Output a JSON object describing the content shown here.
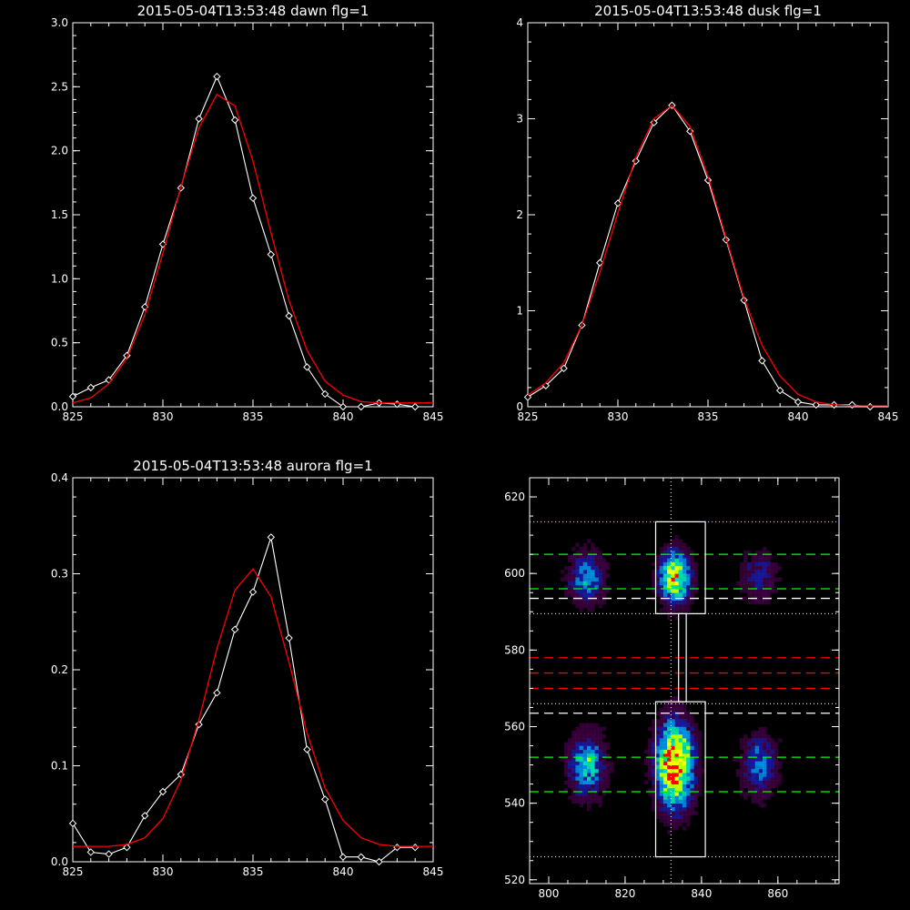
{
  "chart_data": [
    {
      "id": "dawn",
      "type": "line",
      "title": "2015-05-04T13:53:48 dawn flg=1",
      "xlim": [
        825,
        845
      ],
      "ylim": [
        0,
        3.0
      ],
      "xticks": [
        825,
        830,
        835,
        840,
        845
      ],
      "xtick_labels": [
        "825",
        "830",
        "835",
        "840",
        "845"
      ],
      "yticks": [
        0,
        0.5,
        1.0,
        1.5,
        2.0,
        2.5,
        3.0
      ],
      "ytick_labels": [
        "0.0",
        "0.5",
        "1.0",
        "1.5",
        "2.0",
        "2.5",
        "3.0"
      ],
      "series": [
        {
          "style": "data",
          "color": "#ffffff",
          "marker": "diamond",
          "x": [
            825,
            826,
            827,
            828,
            829,
            830,
            831,
            832,
            833,
            834,
            835,
            836,
            837,
            838,
            839,
            840,
            841,
            842,
            843,
            844
          ],
          "y": [
            0.08,
            0.15,
            0.21,
            0.4,
            0.78,
            1.27,
            1.71,
            2.25,
            2.58,
            2.24,
            1.63,
            1.19,
            0.71,
            0.31,
            0.1,
            0.0,
            0.0,
            0.03,
            0.02,
            0.0
          ]
        },
        {
          "style": "fit",
          "color": "#ff0000",
          "x": [
            825,
            826,
            827,
            828,
            829,
            830,
            831,
            832,
            833,
            834,
            835,
            836,
            837,
            838,
            839,
            840,
            841,
            842,
            843,
            844,
            845
          ],
          "y": [
            0.03,
            0.07,
            0.18,
            0.38,
            0.72,
            1.2,
            1.72,
            2.18,
            2.44,
            2.35,
            1.92,
            1.36,
            0.83,
            0.44,
            0.2,
            0.09,
            0.04,
            0.03,
            0.03,
            0.03,
            0.03
          ]
        }
      ]
    },
    {
      "id": "dusk",
      "type": "line",
      "title": "2015-05-04T13:53:48 dusk flg=1",
      "xlim": [
        825,
        845
      ],
      "ylim": [
        0,
        4
      ],
      "xticks": [
        825,
        830,
        835,
        840,
        845
      ],
      "xtick_labels": [
        "825",
        "830",
        "835",
        "840",
        "845"
      ],
      "yticks": [
        0,
        1,
        2,
        3,
        4
      ],
      "ytick_labels": [
        "0",
        "1",
        "2",
        "3",
        "4"
      ],
      "series": [
        {
          "style": "data",
          "color": "#ffffff",
          "marker": "diamond",
          "x": [
            825,
            826,
            827,
            828,
            829,
            830,
            831,
            832,
            833,
            834,
            835,
            836,
            837,
            838,
            839,
            840,
            841,
            842,
            843,
            844
          ],
          "y": [
            0.1,
            0.22,
            0.4,
            0.85,
            1.5,
            2.12,
            2.56,
            2.96,
            3.14,
            2.87,
            2.36,
            1.74,
            1.11,
            0.48,
            0.17,
            0.05,
            0.02,
            0.02,
            0.02,
            0.0
          ]
        },
        {
          "style": "fit",
          "color": "#ff0000",
          "x": [
            825,
            826,
            827,
            828,
            829,
            830,
            831,
            832,
            833,
            834,
            835,
            836,
            837,
            838,
            839,
            840,
            841,
            842,
            843,
            844,
            845
          ],
          "y": [
            0.12,
            0.25,
            0.46,
            0.85,
            1.4,
            2.02,
            2.6,
            3.0,
            3.14,
            2.92,
            2.4,
            1.76,
            1.13,
            0.64,
            0.32,
            0.13,
            0.05,
            0.02,
            0.01,
            0.01,
            0.01
          ]
        }
      ]
    },
    {
      "id": "aurora",
      "type": "line",
      "title": "2015-05-04T13:53:48 aurora flg=1",
      "xlim": [
        825,
        845
      ],
      "ylim": [
        0,
        0.4
      ],
      "xticks": [
        825,
        830,
        835,
        840,
        845
      ],
      "xtick_labels": [
        "825",
        "830",
        "835",
        "840",
        "845"
      ],
      "yticks": [
        0,
        0.1,
        0.2,
        0.3,
        0.4
      ],
      "ytick_labels": [
        "0.0",
        "0.1",
        "0.2",
        "0.3",
        "0.4"
      ],
      "series": [
        {
          "style": "data",
          "color": "#ffffff",
          "marker": "diamond",
          "x": [
            825,
            826,
            827,
            828,
            829,
            830,
            831,
            832,
            833,
            834,
            835,
            836,
            837,
            838,
            839,
            840,
            841,
            842,
            843,
            844
          ],
          "y": [
            0.04,
            0.01,
            0.008,
            0.015,
            0.048,
            0.073,
            0.091,
            0.143,
            0.176,
            0.242,
            0.281,
            0.338,
            0.233,
            0.117,
            0.065,
            0.005,
            0.005,
            -0.003,
            0.015,
            0.015
          ]
        },
        {
          "style": "fit",
          "color": "#ff0000",
          "x": [
            825,
            826,
            827,
            828,
            829,
            830,
            831,
            832,
            833,
            834,
            835,
            836,
            837,
            838,
            839,
            840,
            841,
            842,
            843,
            844,
            845
          ],
          "y": [
            0.016,
            0.016,
            0.016,
            0.018,
            0.025,
            0.045,
            0.085,
            0.148,
            0.222,
            0.283,
            0.305,
            0.276,
            0.208,
            0.134,
            0.077,
            0.043,
            0.025,
            0.018,
            0.016,
            0.016,
            0.016
          ]
        }
      ]
    },
    {
      "id": "image",
      "type": "heatmap",
      "xlim": [
        795,
        876
      ],
      "ylim": [
        519,
        625
      ],
      "xticks": [
        800,
        820,
        840,
        860
      ],
      "xtick_labels": [
        "800",
        "820",
        "840",
        "860"
      ],
      "yticks": [
        520,
        540,
        560,
        580,
        600,
        620
      ],
      "ytick_labels": [
        "520",
        "540",
        "560",
        "580",
        "600",
        "620"
      ],
      "colormap": [
        "#000000",
        "#5a0060",
        "#2020c8",
        "#00a0ff",
        "#00e0b0",
        "#b8ff00",
        "#ffff00",
        "#ff0000"
      ],
      "blobs": [
        {
          "x": 810,
          "y": 599,
          "sx": 3.5,
          "sy": 5,
          "amp": 0.45
        },
        {
          "x": 810,
          "y": 550,
          "sx": 3.5,
          "sy": 6,
          "amp": 0.55
        },
        {
          "x": 833,
          "y": 599,
          "sx": 3,
          "sy": 5,
          "amp": 0.8
        },
        {
          "x": 833,
          "y": 550,
          "sx": 3.5,
          "sy": 8,
          "amp": 1.0
        },
        {
          "x": 855,
          "y": 599,
          "sx": 3.5,
          "sy": 5,
          "amp": 0.3
        },
        {
          "x": 855,
          "y": 550,
          "sx": 3.5,
          "sy": 6,
          "amp": 0.4
        }
      ],
      "vline": {
        "x": 832,
        "color": "#ffffff"
      },
      "dotted_hlines": [
        {
          "y": 613.5,
          "color": "#ffff00"
        },
        {
          "y": 589.5,
          "color": "#ffffff"
        },
        {
          "y": 566,
          "color": "#ffffff"
        },
        {
          "y": 526,
          "color": "#ffffff"
        }
      ],
      "dashed_hlines": [
        {
          "y": 605,
          "color": "#00ff00"
        },
        {
          "y": 596,
          "color": "#00ff00"
        },
        {
          "y": 593.5,
          "color": "#ffffff"
        },
        {
          "y": 578,
          "color": "#ff0000"
        },
        {
          "y": 574,
          "color": "#ff0000"
        },
        {
          "y": 570,
          "color": "#ff0000"
        },
        {
          "y": 563.5,
          "color": "#ffffff"
        },
        {
          "y": 552,
          "color": "#00ff00"
        },
        {
          "y": 543,
          "color": "#00ff00"
        }
      ],
      "boxes": [
        {
          "x0": 828,
          "x1": 841,
          "y0": 589.5,
          "y1": 613.5
        },
        {
          "x0": 834,
          "x1": 836,
          "y0": 566.5,
          "y1": 589.5
        },
        {
          "x0": 828,
          "x1": 841,
          "y0": 526,
          "y1": 566.5
        }
      ]
    }
  ]
}
